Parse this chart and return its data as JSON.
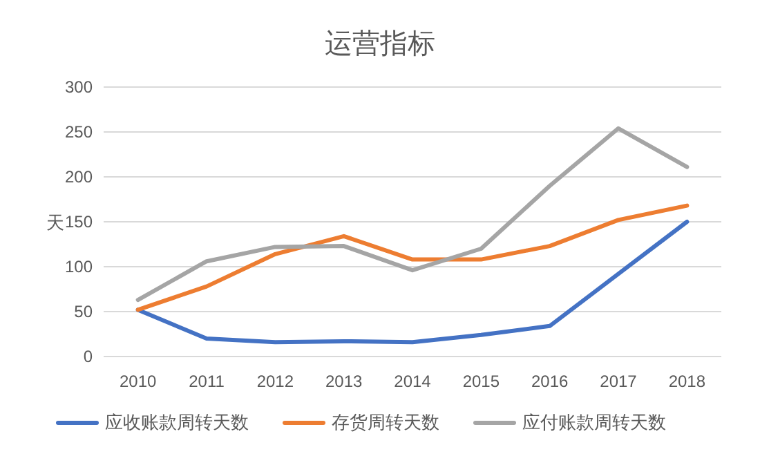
{
  "chart_data": {
    "type": "line",
    "title": "运营指标",
    "ylabel": "天",
    "categories": [
      "2010",
      "2011",
      "2012",
      "2013",
      "2014",
      "2015",
      "2016",
      "2017",
      "2018"
    ],
    "series": [
      {
        "name": "应收账款周转天数",
        "color": "#4472c4",
        "values": [
          52,
          20,
          16,
          17,
          16,
          24,
          34,
          92,
          150
        ]
      },
      {
        "name": "存货周转天数",
        "color": "#ed7d31",
        "values": [
          52,
          78,
          114,
          134,
          108,
          108,
          123,
          152,
          168
        ]
      },
      {
        "name": "应付账款周转天数",
        "color": "#a5a5a5",
        "values": [
          63,
          106,
          122,
          123,
          96,
          120,
          190,
          254,
          211
        ]
      }
    ],
    "ylim": [
      0,
      300
    ],
    "yticks": [
      0,
      50,
      100,
      150,
      200,
      250,
      300
    ],
    "grid": "y",
    "legend": "bottom"
  }
}
